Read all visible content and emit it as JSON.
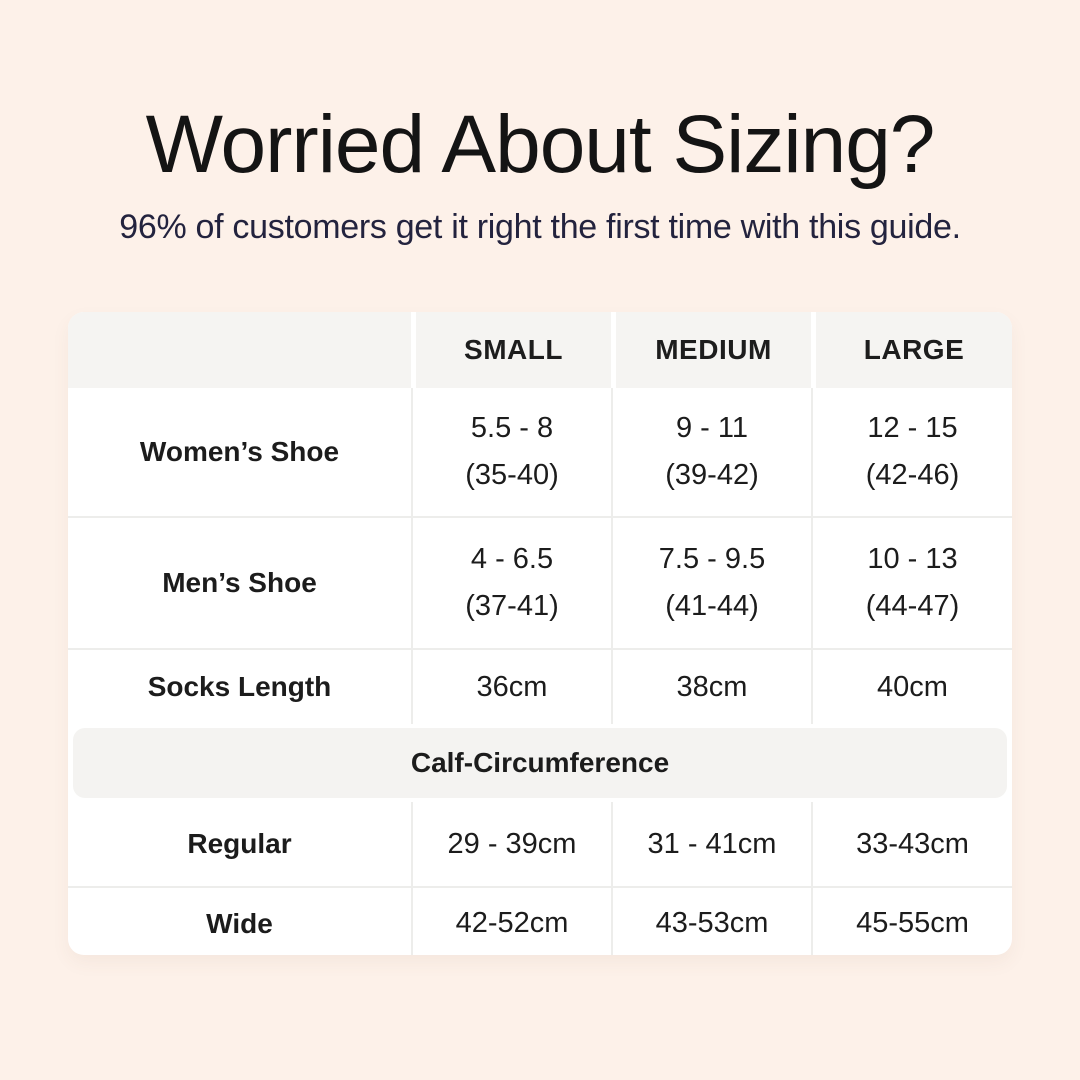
{
  "header": {
    "title": "Worried About Sizing?",
    "subtitle": "96% of customers get it right the first time with this guide."
  },
  "size_table": {
    "column_headers": [
      "SMALL",
      "MEDIUM",
      "LARGE"
    ],
    "rows": [
      {
        "label": "Women’s Shoe",
        "cells": [
          {
            "line1": "5.5 - 8",
            "line2": "(35-40)"
          },
          {
            "line1": "9 - 11",
            "line2": "(39-42)"
          },
          {
            "line1": "12 - 15",
            "line2": "(42-46)"
          }
        ]
      },
      {
        "label": "Men’s Shoe",
        "cells": [
          {
            "line1": "4 - 6.5",
            "line2": "(37-41)"
          },
          {
            "line1": "7.5 - 9.5",
            "line2": "(41-44)"
          },
          {
            "line1": "10 - 13",
            "line2": "(44-47)"
          }
        ]
      },
      {
        "label": "Socks Length",
        "cells": [
          {
            "line1": "36cm"
          },
          {
            "line1": "38cm"
          },
          {
            "line1": "40cm"
          }
        ]
      }
    ],
    "section_header": "Calf-Circumference",
    "calf_rows": [
      {
        "label": "Regular",
        "cells": [
          {
            "line1": "29 - 39cm"
          },
          {
            "line1": "31 - 41cm"
          },
          {
            "line1": "33-43cm"
          }
        ]
      },
      {
        "label": "Wide",
        "cells": [
          {
            "line1": "42-52cm"
          },
          {
            "line1": "43-53cm"
          },
          {
            "line1": "45-55cm"
          }
        ]
      }
    ]
  },
  "colors": {
    "background": "#FDF1E9",
    "title_text": "#141414",
    "subtitle_text": "#23233E",
    "table_background": "#FFFFFF",
    "header_cell_background": "#F5F4F2",
    "section_band_background": "#F4F3F1",
    "divider": "#EDEDEB",
    "body_text": "#1C1C1C"
  }
}
